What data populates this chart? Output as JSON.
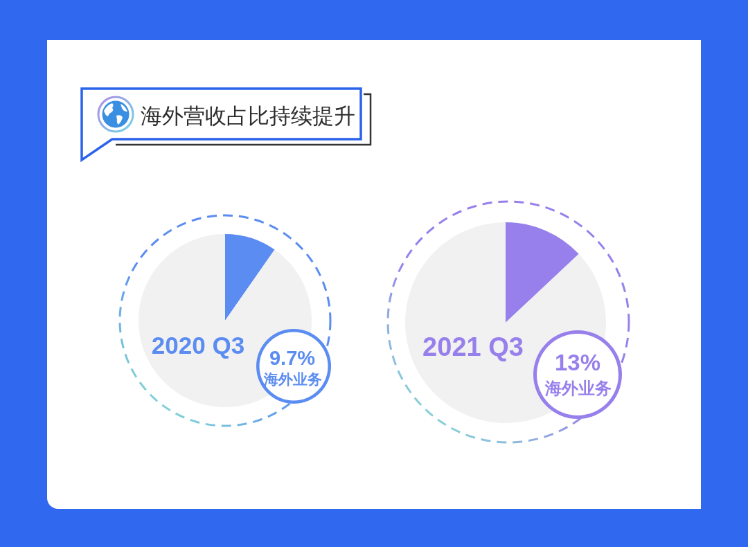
{
  "chart_data": [
    {
      "type": "other",
      "title": "海外营收占比持续提升"
    },
    {
      "type": "pie",
      "title": "2020 Q3",
      "categories": [
        null,
        null
      ],
      "values": [
        9.7,
        90.3
      ],
      "colors": [
        "#5b8cf2",
        "#f1f1f1"
      ],
      "annotations": [
        "9.7%",
        "海外业务"
      ]
    },
    {
      "type": "pie",
      "title": "2021 Q3",
      "categories": [
        null,
        null
      ],
      "values": [
        13,
        87
      ],
      "colors": [
        "#9880ec",
        "#f1f1f1"
      ],
      "annotations": [
        "13%",
        "海外业务"
      ]
    }
  ]
}
